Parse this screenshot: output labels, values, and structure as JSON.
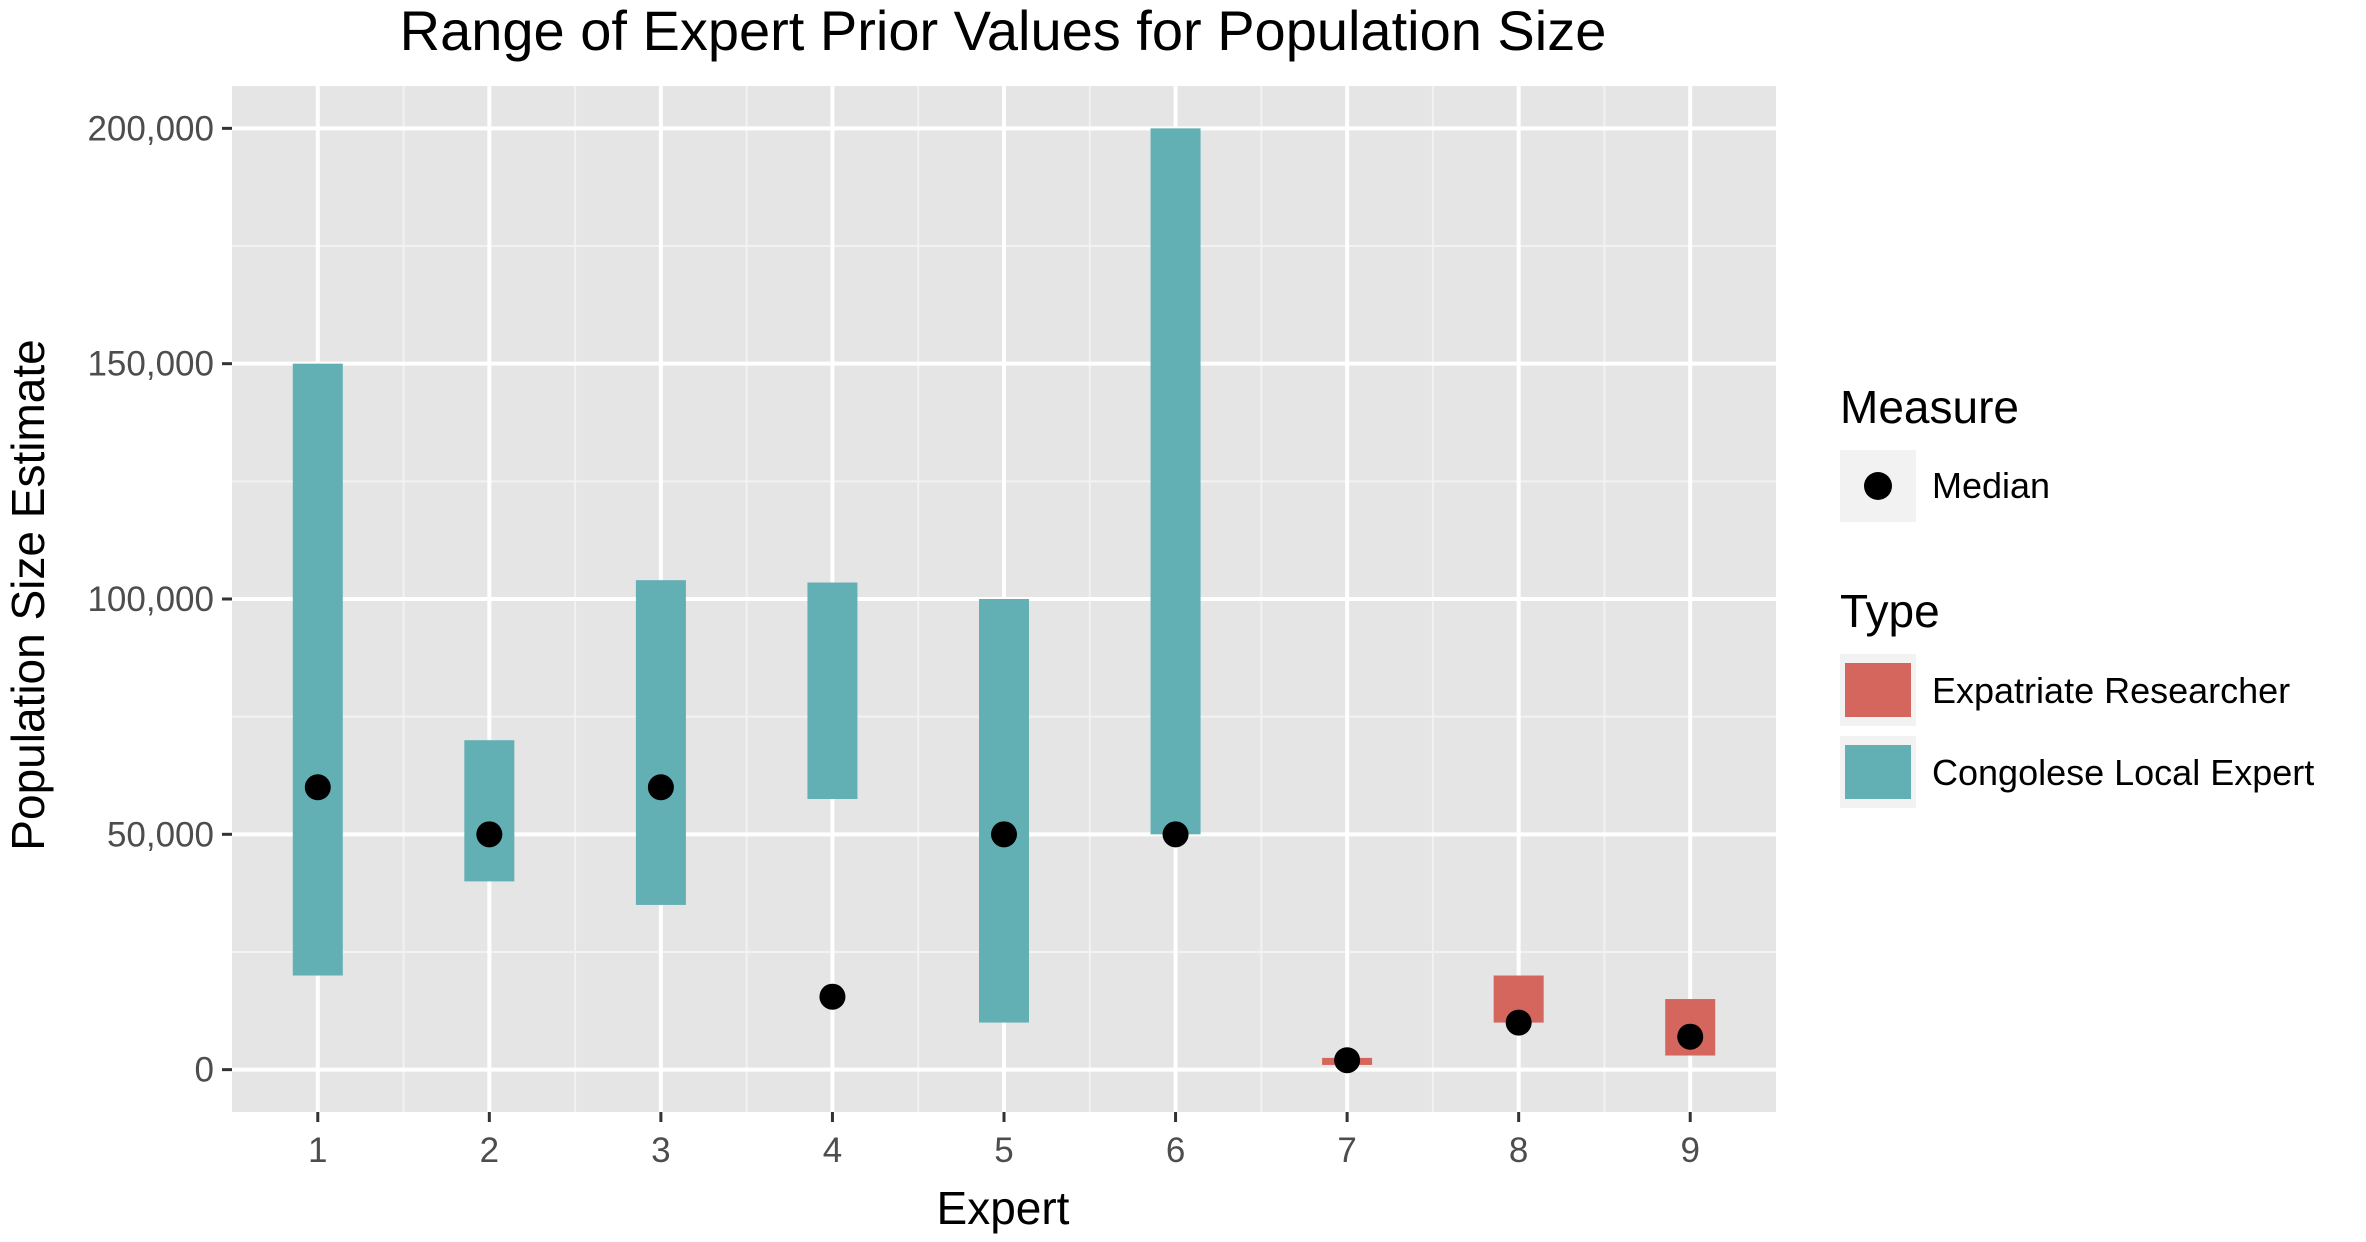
{
  "chart_data": {
    "type": "range-bar-with-points",
    "title": "Range of Expert Prior Values for Population Size",
    "xlabel": "Expert",
    "ylabel": "Population Size Estimate",
    "categories": [
      "1",
      "2",
      "3",
      "4",
      "5",
      "6",
      "7",
      "8",
      "9"
    ],
    "ylim": [
      -9000,
      209000
    ],
    "yticks": [
      0,
      50000,
      100000,
      150000,
      200000
    ],
    "ytick_labels": [
      "0",
      "50,000",
      "100,000",
      "150,000",
      "200,000"
    ],
    "grid": true,
    "ranges": [
      {
        "expert": "1",
        "low": 20000,
        "high": 150000,
        "type": "Congolese Local Expert"
      },
      {
        "expert": "2",
        "low": 40000,
        "high": 70000,
        "type": "Congolese Local Expert"
      },
      {
        "expert": "3",
        "low": 35000,
        "high": 104000,
        "type": "Congolese Local Expert"
      },
      {
        "expert": "4",
        "low": 57500,
        "high": 103500,
        "type": "Congolese Local Expert"
      },
      {
        "expert": "5",
        "low": 10000,
        "high": 100000,
        "type": "Congolese Local Expert"
      },
      {
        "expert": "6",
        "low": 50000,
        "high": 200000,
        "type": "Congolese Local Expert"
      },
      {
        "expert": "7",
        "low": 1000,
        "high": 2500,
        "type": "Expatriate Researcher"
      },
      {
        "expert": "8",
        "low": 10000,
        "high": 20000,
        "type": "Expatriate Researcher"
      },
      {
        "expert": "9",
        "low": 3000,
        "high": 15000,
        "type": "Expatriate Researcher"
      }
    ],
    "medians": [
      {
        "expert": "1",
        "value": 60000
      },
      {
        "expert": "2",
        "value": 50000
      },
      {
        "expert": "3",
        "value": 60000
      },
      {
        "expert": "4",
        "value": 15500
      },
      {
        "expert": "5",
        "value": 50000
      },
      {
        "expert": "6",
        "value": 50000
      },
      {
        "expert": "7",
        "value": 2000
      },
      {
        "expert": "8",
        "value": 10000
      },
      {
        "expert": "9",
        "value": 7000
      }
    ],
    "legend": {
      "placement": "right",
      "measure_title": "Measure",
      "measure_items": [
        {
          "label": "Median",
          "shape": "point",
          "color": "#000000"
        }
      ],
      "type_title": "Type",
      "type_items": [
        {
          "label": "Expatriate Researcher",
          "color": "#D4665E"
        },
        {
          "label": "Congolese Local Expert",
          "color": "#62AFB4"
        }
      ]
    },
    "colors": {
      "panel_background": "#E5E5E5",
      "grid_major": "#FFFFFF",
      "grid_minor": "#F2F2F2",
      "Congolese Local Expert": "#62AFB4",
      "Expatriate Researcher": "#D4665E",
      "median": "#000000"
    }
  }
}
